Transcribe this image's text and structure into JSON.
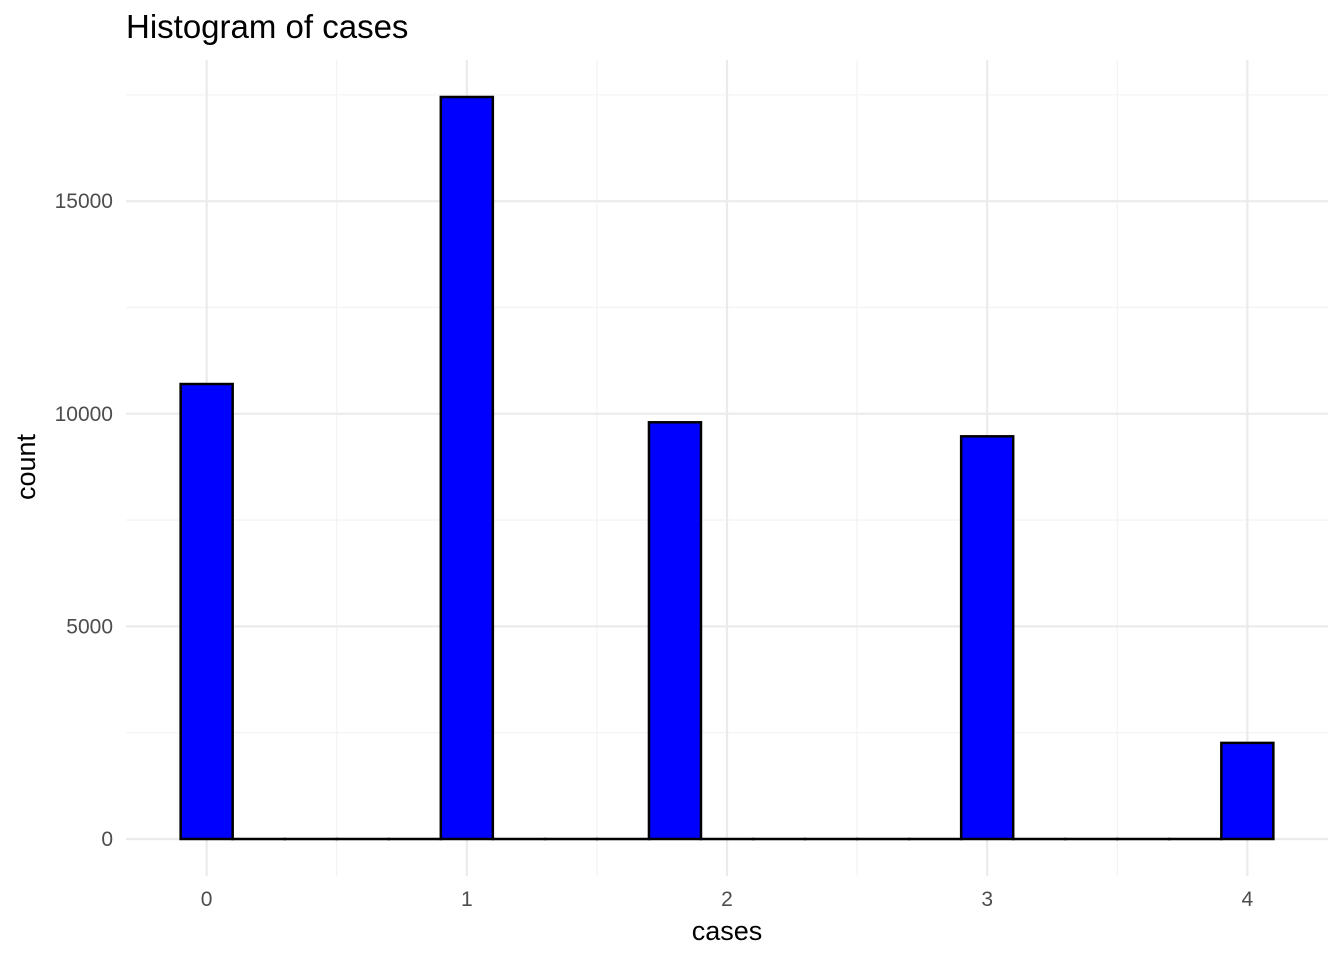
{
  "chart_data": {
    "type": "bar",
    "title": "Histogram of cases",
    "xlabel": "cases",
    "ylabel": "count",
    "bin_width": 0.2,
    "bins": [
      {
        "x": 0.0,
        "count": 10700
      },
      {
        "x": 0.2,
        "count": 0
      },
      {
        "x": 0.4,
        "count": 0
      },
      {
        "x": 0.6,
        "count": 0
      },
      {
        "x": 0.8,
        "count": 0
      },
      {
        "x": 1.0,
        "count": 17450
      },
      {
        "x": 1.2,
        "count": 0
      },
      {
        "x": 1.4,
        "count": 0
      },
      {
        "x": 1.6,
        "count": 0
      },
      {
        "x": 1.8,
        "count": 9800
      },
      {
        "x": 2.0,
        "count": 0
      },
      {
        "x": 2.2,
        "count": 0
      },
      {
        "x": 2.4,
        "count": 0
      },
      {
        "x": 2.6,
        "count": 0
      },
      {
        "x": 2.8,
        "count": 0
      },
      {
        "x": 3.0,
        "count": 9470
      },
      {
        "x": 3.2,
        "count": 0
      },
      {
        "x": 3.4,
        "count": 0
      },
      {
        "x": 3.6,
        "count": 0
      },
      {
        "x": 3.8,
        "count": 0
      },
      {
        "x": 4.0,
        "count": 2260
      }
    ],
    "x_ticks": [
      0,
      1,
      2,
      3,
      4
    ],
    "x_tick_labels": [
      "0",
      "1",
      "2",
      "3",
      "4"
    ],
    "y_ticks": [
      0,
      5000,
      10000,
      15000
    ],
    "y_tick_labels": [
      "0",
      "5000",
      "10000",
      "15000"
    ],
    "xlim": [
      -0.31,
      4.31
    ],
    "ylim": [
      -870,
      18320
    ],
    "grid": true,
    "legend": "none",
    "bar_fill": "#0000ff",
    "bar_outline": "#000000"
  }
}
